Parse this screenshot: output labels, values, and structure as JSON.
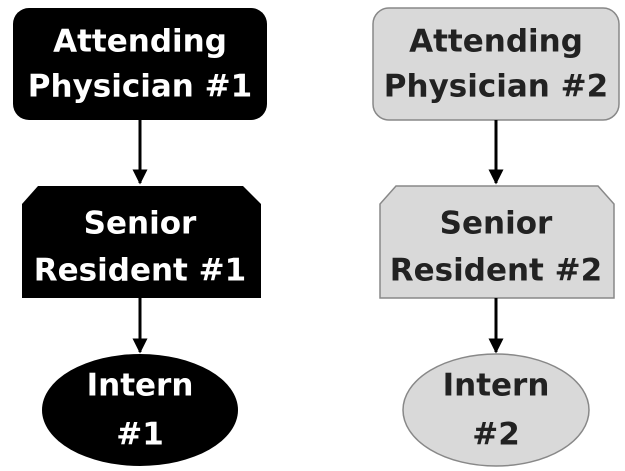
{
  "columns": [
    {
      "nodes": [
        {
          "label": [
            "Attending",
            "Physician #1"
          ]
        },
        {
          "label": [
            "Senior",
            "Resident #1"
          ]
        },
        {
          "label": [
            "Intern",
            "#1"
          ]
        }
      ]
    },
    {
      "nodes": [
        {
          "label": [
            "Attending",
            "Physician #2"
          ]
        },
        {
          "label": [
            "Senior",
            "Resident #2"
          ]
        },
        {
          "label": [
            "Intern",
            "#2"
          ]
        }
      ]
    }
  ]
}
